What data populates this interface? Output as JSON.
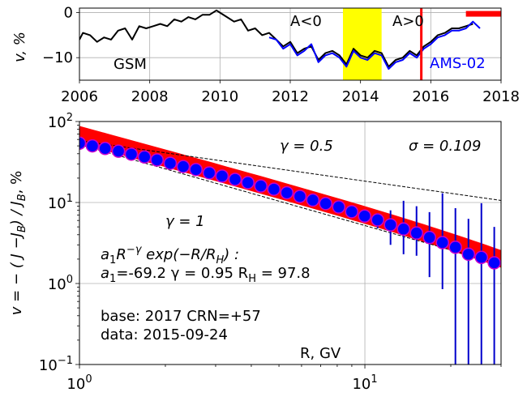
{
  "chart_data": [
    {
      "type": "line",
      "panel": "top",
      "xlim": [
        2006,
        2018
      ],
      "ylim": [
        -15,
        1
      ],
      "x_ticks": [
        "2006",
        "2008",
        "2010",
        "2012",
        "2014",
        "2016",
        "2018"
      ],
      "y_ticks": [
        "0",
        "−10"
      ],
      "ylabel": "v, %",
      "grid": true,
      "annotations": {
        "gsm": "GSM",
        "a_neg": "A<0",
        "a_pos": "A>0",
        "ams": "AMS-02"
      },
      "shaded_span": {
        "x": [
          2013.5,
          2014.6
        ],
        "color": "#ffff00"
      },
      "vertical_line": {
        "x": 2015.73,
        "color": "#ff0000"
      },
      "marker_bar": {
        "x": [
          2017.0,
          2018.0
        ],
        "y": 0,
        "color": "#ff0000"
      },
      "series": [
        {
          "name": "GSM",
          "color": "#000000",
          "x": [
            2006.0,
            2006.1,
            2006.3,
            2006.5,
            2006.7,
            2006.9,
            2007.1,
            2007.3,
            2007.5,
            2007.7,
            2007.9,
            2008.1,
            2008.3,
            2008.5,
            2008.7,
            2008.9,
            2009.1,
            2009.3,
            2009.5,
            2009.7,
            2009.9,
            2010.0,
            2010.2,
            2010.4,
            2010.6,
            2010.8,
            2011.0,
            2011.2,
            2011.4,
            2011.6,
            2011.8,
            2012.0,
            2012.2,
            2012.4,
            2012.6,
            2012.8,
            2013.0,
            2013.2,
            2013.4,
            2013.6,
            2013.8,
            2014.0,
            2014.2,
            2014.4,
            2014.6,
            2014.8,
            2015.0,
            2015.2,
            2015.4,
            2015.6,
            2015.8,
            2016.0,
            2016.2,
            2016.4,
            2016.6,
            2016.8,
            2017.0,
            2017.2
          ],
          "values": [
            -6.0,
            -4.5,
            -5.0,
            -6.5,
            -5.5,
            -6.0,
            -4.0,
            -3.5,
            -6.0,
            -3.0,
            -3.5,
            -3.0,
            -2.5,
            -3.0,
            -1.5,
            -2.0,
            -1.0,
            -1.5,
            -0.5,
            -0.5,
            0.5,
            0.0,
            -1.0,
            -2.0,
            -1.5,
            -4.0,
            -3.5,
            -5.0,
            -4.5,
            -6.0,
            -7.5,
            -6.5,
            -9.0,
            -8.0,
            -7.5,
            -10.5,
            -9.0,
            -8.5,
            -9.5,
            -11.5,
            -8.0,
            -9.5,
            -10.0,
            -8.5,
            -9.0,
            -12.0,
            -10.5,
            -10.0,
            -8.5,
            -9.5,
            -7.5,
            -6.5,
            -5.0,
            -4.5,
            -3.5,
            -3.5,
            -3.0,
            -2.5
          ]
        },
        {
          "name": "AMS-02",
          "color": "#0000ff",
          "x": [
            2011.4,
            2011.6,
            2011.8,
            2012.0,
            2012.2,
            2012.4,
            2012.6,
            2012.8,
            2013.0,
            2013.2,
            2013.4,
            2013.6,
            2013.8,
            2014.0,
            2014.2,
            2014.4,
            2014.6,
            2014.8,
            2015.0,
            2015.2,
            2015.4,
            2015.6,
            2015.8,
            2016.0,
            2016.2,
            2016.4,
            2016.6,
            2016.8,
            2017.0,
            2017.2,
            2017.4
          ],
          "values": [
            -5.5,
            -6.0,
            -8.0,
            -7.0,
            -9.5,
            -8.5,
            -7.0,
            -11.0,
            -9.5,
            -9.0,
            -10.0,
            -12.0,
            -8.5,
            -10.0,
            -10.5,
            -9.0,
            -9.5,
            -12.5,
            -11.0,
            -10.5,
            -9.0,
            -10.0,
            -8.0,
            -7.0,
            -5.5,
            -5.0,
            -4.0,
            -4.0,
            -3.5,
            -2.0,
            -3.5
          ]
        }
      ]
    },
    {
      "type": "scatter",
      "panel": "bottom",
      "xscale": "log",
      "yscale": "log",
      "xlim": [
        1,
        30
      ],
      "ylim": [
        0.1,
        100
      ],
      "x_ticks": [
        {
          "base": "10",
          "exp": "0"
        },
        {
          "base": "10",
          "exp": "1"
        }
      ],
      "y_ticks": [
        {
          "base": "10",
          "exp": "−1"
        },
        {
          "base": "10",
          "exp": "0"
        },
        {
          "base": "10",
          "exp": "1"
        },
        {
          "base": "10",
          "exp": "2"
        }
      ],
      "ylabel": "v  =  − ( J −J",
      "ylabel_sub1": "B",
      "ylabel_mid": ") / J",
      "ylabel_sub2": "B",
      "ylabel_end": ", %",
      "xlabel": "R, GV",
      "grid": true,
      "annotations": {
        "gamma_half": "γ = 0.5",
        "sigma": "σ = 0.109",
        "gamma_one": "γ = 1",
        "fit_a": "a",
        "fit_a_sub": "1",
        "fit_R": "R",
        "fit_exp": "−γ",
        "fit_rest": " exp(−R/R",
        "fit_H": "H",
        "fit_end": ") :",
        "params_a": "a",
        "params_a_sub": "1",
        "params_val": "=-69.2  γ = 0.95  R",
        "params_H": "H",
        "params_end": " = 97.8",
        "base": "base: 2017   CRN=+57",
        "date": "data: 2015-09-24"
      },
      "fit": {
        "a1": -69.2,
        "gamma": 0.95,
        "R_H": 97.8,
        "sigma": 0.109,
        "color": "#ff0000"
      },
      "reference_lines": [
        {
          "gamma": 0.5,
          "x": [
            1,
            30
          ],
          "y": [
            58,
            10.6
          ]
        },
        {
          "gamma": 1,
          "x": [
            1,
            30
          ],
          "y": [
            52,
            1.73
          ]
        }
      ],
      "points": {
        "marker_color": "#0000ff",
        "edge_color": "#cc00cc",
        "errorbar_color": "#0000cc",
        "x": [
          1.0,
          1.11,
          1.23,
          1.37,
          1.52,
          1.69,
          1.87,
          2.08,
          2.31,
          2.56,
          2.85,
          3.16,
          3.51,
          3.89,
          4.32,
          4.8,
          5.33,
          5.92,
          6.57,
          7.29,
          8.1,
          8.99,
          9.98,
          11.08,
          12.3,
          13.66,
          15.17,
          16.84,
          18.7,
          20.76,
          23.06,
          25.6,
          28.4
        ],
        "values": [
          54,
          50,
          46.5,
          43,
          39.5,
          36.5,
          33.5,
          30.5,
          27.8,
          25.5,
          23.2,
          21.2,
          19.3,
          17.6,
          16.0,
          14.6,
          13.2,
          11.9,
          10.7,
          9.7,
          8.8,
          7.7,
          6.8,
          6.1,
          5.3,
          4.7,
          4.2,
          3.7,
          3.2,
          2.8,
          2.3,
          2.1,
          1.8
        ],
        "err_hi": [
          null,
          null,
          null,
          null,
          null,
          null,
          null,
          null,
          null,
          null,
          null,
          null,
          null,
          null,
          null,
          null,
          null,
          null,
          null,
          null,
          null,
          null,
          7.8,
          7.4,
          8.0,
          10.5,
          9.0,
          7.6,
          13.0,
          8.5,
          6.3,
          9.8,
          5.0
        ],
        "err_lo": [
          null,
          null,
          null,
          null,
          null,
          null,
          null,
          null,
          null,
          null,
          null,
          null,
          null,
          null,
          null,
          null,
          null,
          null,
          null,
          null,
          null,
          null,
          5.8,
          4.8,
          3.0,
          2.3,
          2.2,
          1.2,
          0.85,
          0.1,
          0.1,
          0.1,
          0.1
        ]
      }
    }
  ]
}
